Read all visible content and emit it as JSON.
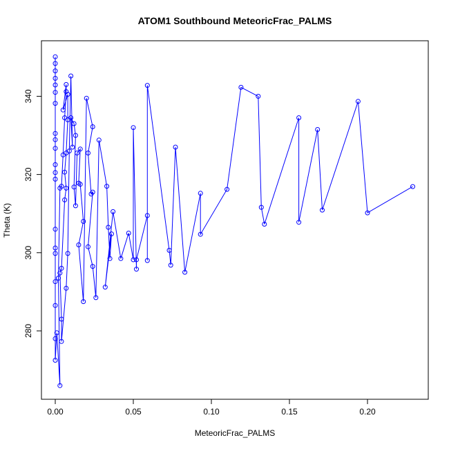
{
  "chart_data": {
    "type": "line",
    "title": "ATOM1 Southbound MeteoricFrac_PALMS",
    "xlabel": "MeteoricFrac_PALMS",
    "ylabel": "Theta (K)",
    "xlim": [
      0,
      0.23
    ],
    "ylim": [
      266,
      350
    ],
    "xticks": [
      0.0,
      0.05,
      0.1,
      0.15,
      0.2
    ],
    "xtick_labels": [
      "0.00",
      "0.05",
      "0.10",
      "0.15",
      "0.20"
    ],
    "yticks": [
      280,
      300,
      320,
      340
    ],
    "ytick_labels": [
      "280",
      "300",
      "320",
      "340"
    ],
    "grid": false,
    "colors": {
      "series": "#0000ff"
    },
    "series": [
      {
        "marker": "open-circle",
        "points": [
          [
            0.0,
            350.1
          ],
          [
            0.0,
            348.4
          ],
          [
            0.0,
            346.5
          ],
          [
            0.0,
            344.6
          ],
          [
            0.0,
            342.9
          ],
          [
            0.0,
            341.0
          ],
          [
            0.0,
            338.2
          ],
          [
            0.0,
            330.5
          ],
          [
            0.0,
            328.9
          ],
          [
            0.0,
            326.7
          ],
          [
            0.0,
            322.5
          ],
          [
            0.0,
            320.5
          ],
          [
            0.0,
            318.8
          ],
          [
            0.0,
            306.0
          ],
          [
            0.0,
            301.2
          ],
          [
            0.0,
            299.8
          ],
          [
            0.0,
            292.6
          ],
          [
            0.0,
            286.5
          ],
          [
            0.0,
            278.0
          ],
          [
            0.0,
            272.5
          ],
          [
            0.001,
            279.5
          ],
          [
            0.003,
            266.0
          ],
          [
            0.002,
            293.5
          ],
          [
            0.003,
            316.5
          ],
          [
            0.004,
            317.0
          ],
          [
            0.005,
            325.0
          ],
          [
            0.006,
            334.5
          ],
          [
            0.007,
            341.2
          ],
          [
            0.007,
            343.0
          ],
          [
            0.005,
            336.5
          ],
          [
            0.008,
            340.5
          ],
          [
            0.008,
            334.0
          ],
          [
            0.007,
            325.5
          ],
          [
            0.006,
            320.6
          ],
          [
            0.007,
            316.5
          ],
          [
            0.006,
            313.5
          ],
          [
            0.004,
            296.0
          ],
          [
            0.003,
            294.8
          ],
          [
            0.004,
            283.0
          ],
          [
            0.004,
            277.3
          ],
          [
            0.007,
            290.9
          ],
          [
            0.008,
            299.8
          ],
          [
            0.009,
            326.0
          ],
          [
            0.01,
            345.2
          ],
          [
            0.011,
            327.0
          ],
          [
            0.01,
            334.5
          ],
          [
            0.012,
            333.0
          ],
          [
            0.013,
            330.0
          ],
          [
            0.012,
            316.8
          ],
          [
            0.013,
            312.0
          ],
          [
            0.014,
            325.5
          ],
          [
            0.016,
            326.5
          ],
          [
            0.015,
            317.8
          ],
          [
            0.016,
            317.5
          ],
          [
            0.018,
            308.0
          ],
          [
            0.015,
            302.0
          ],
          [
            0.018,
            287.5
          ],
          [
            0.02,
            339.5
          ],
          [
            0.024,
            332.2
          ],
          [
            0.021,
            325.5
          ],
          [
            0.023,
            315.0
          ],
          [
            0.024,
            315.5
          ],
          [
            0.021,
            301.5
          ],
          [
            0.024,
            296.5
          ],
          [
            0.026,
            288.5
          ],
          [
            0.028,
            328.8
          ],
          [
            0.033,
            317.0
          ],
          [
            0.034,
            306.5
          ],
          [
            0.035,
            298.5
          ],
          [
            0.036,
            304.8
          ],
          [
            0.032,
            291.2
          ],
          [
            0.037,
            310.5
          ],
          [
            0.042,
            298.5
          ],
          [
            0.047,
            305.0
          ],
          [
            0.05,
            298.2
          ],
          [
            0.05,
            332.0
          ],
          [
            0.052,
            295.8
          ],
          [
            0.052,
            298.2
          ],
          [
            0.059,
            309.5
          ],
          [
            0.059,
            298.0
          ],
          [
            0.059,
            342.8
          ],
          [
            0.073,
            300.6
          ],
          [
            0.074,
            296.8
          ],
          [
            0.077,
            327.0
          ],
          [
            0.083,
            295.0
          ],
          [
            0.093,
            315.2
          ],
          [
            0.093,
            304.7
          ],
          [
            0.11,
            316.2
          ],
          [
            0.119,
            342.3
          ],
          [
            0.13,
            340.0
          ],
          [
            0.132,
            311.6
          ],
          [
            0.134,
            307.3
          ],
          [
            0.156,
            334.5
          ],
          [
            0.156,
            307.8
          ],
          [
            0.168,
            331.5
          ],
          [
            0.171,
            310.9
          ],
          [
            0.194,
            338.7
          ],
          [
            0.2,
            310.2
          ],
          [
            0.229,
            316.9
          ]
        ]
      }
    ]
  }
}
